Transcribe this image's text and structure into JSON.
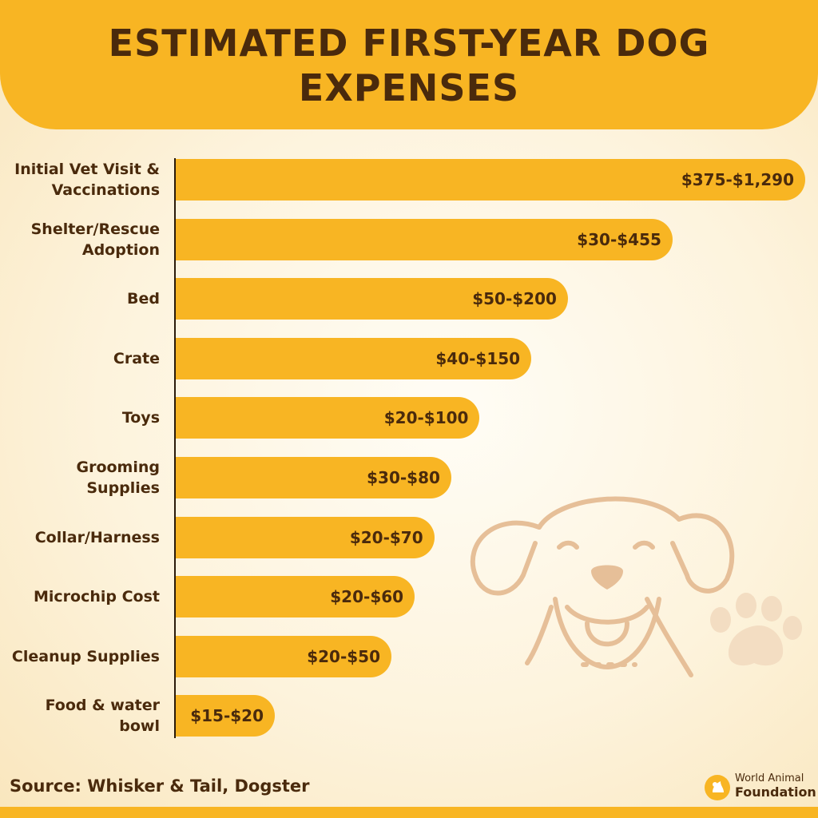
{
  "title": "ESTIMATED FIRST-YEAR DOG EXPENSES",
  "source": "Source: Whisker & Tail, Dogster",
  "brand": {
    "line1": "World Animal",
    "line2": "Foundation"
  },
  "colors": {
    "bar": "#f8b523",
    "text": "#4a2a0c",
    "illustration": "#e6bf98"
  },
  "illustration": {
    "dog": "dog-face-icon",
    "paw": "paw-print-icon"
  },
  "chart_data": {
    "type": "bar",
    "orientation": "horizontal",
    "title": "ESTIMATED FIRST-YEAR DOG EXPENSES",
    "unit": "USD",
    "categories": [
      "Initial Vet Visit & Vaccinations",
      "Shelter/Rescue Adoption",
      "Bed",
      "Crate",
      "Toys",
      "Grooming Supplies",
      "Collar/Harness",
      "Microchip Cost",
      "Cleanup Supplies",
      "Food & water bowl"
    ],
    "ranges": [
      {
        "low": 375,
        "high": 1290
      },
      {
        "low": 30,
        "high": 455
      },
      {
        "low": 50,
        "high": 200
      },
      {
        "low": 40,
        "high": 150
      },
      {
        "low": 20,
        "high": 100
      },
      {
        "low": 30,
        "high": 80
      },
      {
        "low": 20,
        "high": 70
      },
      {
        "low": 20,
        "high": 60
      },
      {
        "low": 20,
        "high": 50
      },
      {
        "low": 15,
        "high": 20
      }
    ],
    "labels": [
      "$375-$1,290",
      "$30-$455",
      "$50-$200",
      "$40-$150",
      "$20-$100",
      "$30-$80",
      "$20-$70",
      "$20-$60",
      "$20-$50",
      "$15-$20"
    ],
    "legend": "none",
    "grid": false
  }
}
